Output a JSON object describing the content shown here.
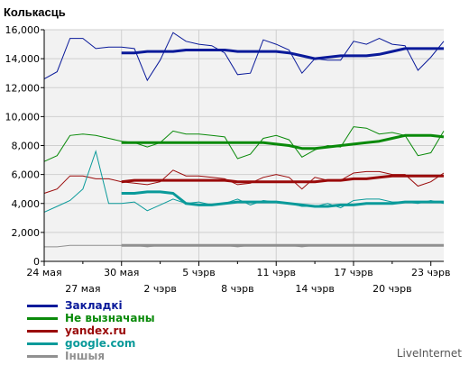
{
  "chart_data": {
    "type": "line",
    "ylabel": "Колькасць",
    "ylim": [
      0,
      16000
    ],
    "yticks": [
      "0",
      "2,000",
      "4,000",
      "6,000",
      "8,000",
      "10,000",
      "12,000",
      "14,000",
      "16,000"
    ],
    "xticks_row1": [
      "24 мая",
      "30 мая",
      "5 чэрв",
      "11 чэрв",
      "17 чэрв",
      "23 чэрв"
    ],
    "xticks_row2": [
      "27 мая",
      "2 чэрв",
      "8 чэрв",
      "14 чэрв",
      "20 чэрв"
    ],
    "grid": true,
    "legend_position": "bottom-left",
    "series": [
      {
        "name": "Закладкі",
        "color": "#0a1a9a",
        "values": [
          12600,
          13100,
          15400,
          15400,
          14700,
          14800,
          14800,
          14700,
          12500,
          13900,
          15800,
          15200,
          15000,
          14900,
          14400,
          12900,
          13000,
          15300,
          15000,
          14600,
          13000,
          14000,
          13900,
          13900,
          15200,
          15000,
          15400,
          15000,
          14900,
          13200,
          14100,
          15200
        ],
        "trend_from": 6,
        "trend": [
          14400,
          14400,
          14500,
          14500,
          14500,
          14600,
          14600,
          14600,
          14600,
          14500,
          14500,
          14500,
          14500,
          14400,
          14200,
          14000,
          14100,
          14200,
          14200,
          14200,
          14300,
          14500,
          14700,
          14700,
          14700,
          14700
        ]
      },
      {
        "name": "Не вызначаны",
        "color": "#0a8a0a",
        "values": [
          6900,
          7300,
          8700,
          8800,
          8700,
          8500,
          8300,
          8200,
          7900,
          8200,
          9000,
          8800,
          8800,
          8700,
          8600,
          7100,
          7400,
          8500,
          8700,
          8400,
          7200,
          7700,
          8000,
          7900,
          9300,
          9200,
          8800,
          8900,
          8700,
          7300,
          7500,
          9000
        ],
        "trend_from": 6,
        "trend": [
          8200,
          8200,
          8200,
          8200,
          8200,
          8200,
          8200,
          8200,
          8200,
          8200,
          8200,
          8200,
          8100,
          8000,
          7800,
          7800,
          7900,
          8000,
          8100,
          8200,
          8300,
          8500,
          8700,
          8700,
          8700,
          8600
        ]
      },
      {
        "name": "yandex.ru",
        "color": "#9a0a0a",
        "values": [
          4700,
          5000,
          5900,
          5900,
          5700,
          5700,
          5500,
          5400,
          5300,
          5500,
          6300,
          5900,
          5900,
          5800,
          5700,
          5300,
          5400,
          5800,
          6000,
          5800,
          5000,
          5800,
          5600,
          5600,
          6100,
          6200,
          6200,
          6000,
          6000,
          5200,
          5500,
          6100
        ],
        "trend_from": 6,
        "trend": [
          5500,
          5600,
          5600,
          5600,
          5600,
          5600,
          5600,
          5600,
          5600,
          5500,
          5500,
          5500,
          5500,
          5500,
          5500,
          5500,
          5600,
          5600,
          5700,
          5700,
          5800,
          5900,
          5900,
          5900,
          5900,
          5900
        ]
      },
      {
        "name": "google.com",
        "color": "#0a9a9a",
        "values": [
          3400,
          3800,
          4200,
          5000,
          7600,
          4000,
          4000,
          4100,
          3500,
          3900,
          4300,
          4000,
          4100,
          3900,
          4000,
          4300,
          3900,
          4200,
          4100,
          4000,
          3800,
          3800,
          4000,
          3700,
          4200,
          4300,
          4300,
          4100,
          4100,
          4000,
          4200,
          4000
        ],
        "trend_from": 6,
        "trend": [
          4700,
          4700,
          4800,
          4800,
          4700,
          4000,
          3900,
          3900,
          4000,
          4100,
          4100,
          4100,
          4100,
          4000,
          3900,
          3800,
          3800,
          3900,
          3900,
          4000,
          4000,
          4000,
          4100,
          4100,
          4100,
          4100
        ]
      },
      {
        "name": "Іншыя",
        "color": "#909090",
        "values": [
          1000,
          1000,
          1100,
          1100,
          1100,
          1100,
          1100,
          1100,
          1000,
          1100,
          1100,
          1100,
          1100,
          1100,
          1100,
          1000,
          1100,
          1100,
          1100,
          1100,
          1000,
          1100,
          1100,
          1100,
          1100,
          1100,
          1100,
          1100,
          1100,
          1100,
          1100,
          1100
        ],
        "trend_from": 6,
        "trend": [
          1100,
          1100,
          1100,
          1100,
          1100,
          1100,
          1100,
          1100,
          1100,
          1100,
          1100,
          1100,
          1100,
          1100,
          1100,
          1100,
          1100,
          1100,
          1100,
          1100,
          1100,
          1100,
          1100,
          1100,
          1100,
          1100
        ]
      }
    ]
  },
  "footer": {
    "brand": "LiveInternet"
  }
}
